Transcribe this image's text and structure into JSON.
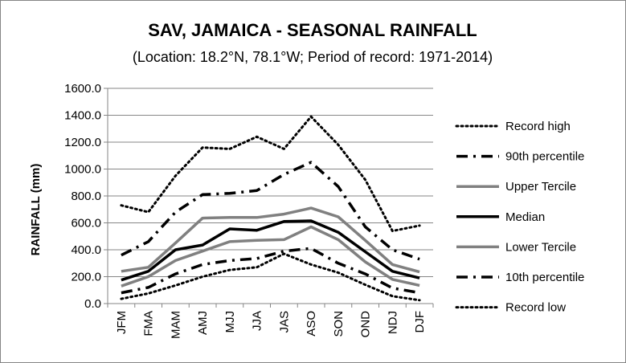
{
  "chart_data": {
    "type": "line",
    "title": "SAV, JAMAICA - SEASONAL RAINFALL",
    "subtitle": "(Location: 18.2°N, 78.1°W; Period of record: 1971-2014)",
    "ylabel": "RAINFALL (mm)",
    "xlabel": "",
    "ylim": [
      0,
      1600
    ],
    "yticks": [
      "0.0",
      "200.0",
      "400.0",
      "600.0",
      "800.0",
      "1000.0",
      "1200.0",
      "1400.0",
      "1600.0"
    ],
    "grid": true,
    "legend_position": "right",
    "categories": [
      "JFM",
      "FMA",
      "MAM",
      "AMJ",
      "MJJ",
      "JJA",
      "JAS",
      "ASO",
      "SON",
      "OND",
      "NDJ",
      "DJF"
    ],
    "series": [
      {
        "name": "Record high",
        "style": "dotted",
        "color": "#000000",
        "values": [
          730,
          680,
          950,
          1160,
          1150,
          1240,
          1150,
          1390,
          1180,
          920,
          540,
          580
        ]
      },
      {
        "name": "90th percentile",
        "style": "dashdot",
        "color": "#000000",
        "values": [
          360,
          460,
          680,
          810,
          820,
          840,
          960,
          1050,
          870,
          570,
          400,
          330
        ]
      },
      {
        "name": "Upper Tercile",
        "style": "solid-gray",
        "color": "#808080",
        "values": [
          240,
          270,
          450,
          635,
          640,
          640,
          665,
          710,
          645,
          470,
          290,
          235
        ]
      },
      {
        "name": "Median",
        "style": "solid-black",
        "color": "#000000",
        "values": [
          175,
          240,
          400,
          435,
          555,
          545,
          610,
          615,
          530,
          385,
          240,
          190
        ]
      },
      {
        "name": "Lower Tercile",
        "style": "solid-gray",
        "color": "#808080",
        "values": [
          130,
          200,
          320,
          390,
          460,
          470,
          475,
          570,
          475,
          310,
          180,
          135
        ]
      },
      {
        "name": "10th percentile",
        "style": "dashdot",
        "color": "#000000",
        "values": [
          80,
          120,
          220,
          290,
          320,
          335,
          390,
          410,
          300,
          220,
          115,
          80
        ]
      },
      {
        "name": "Record low",
        "style": "dotted",
        "color": "#000000",
        "values": [
          35,
          75,
          135,
          200,
          250,
          270,
          370,
          290,
          230,
          140,
          55,
          25
        ]
      }
    ]
  }
}
